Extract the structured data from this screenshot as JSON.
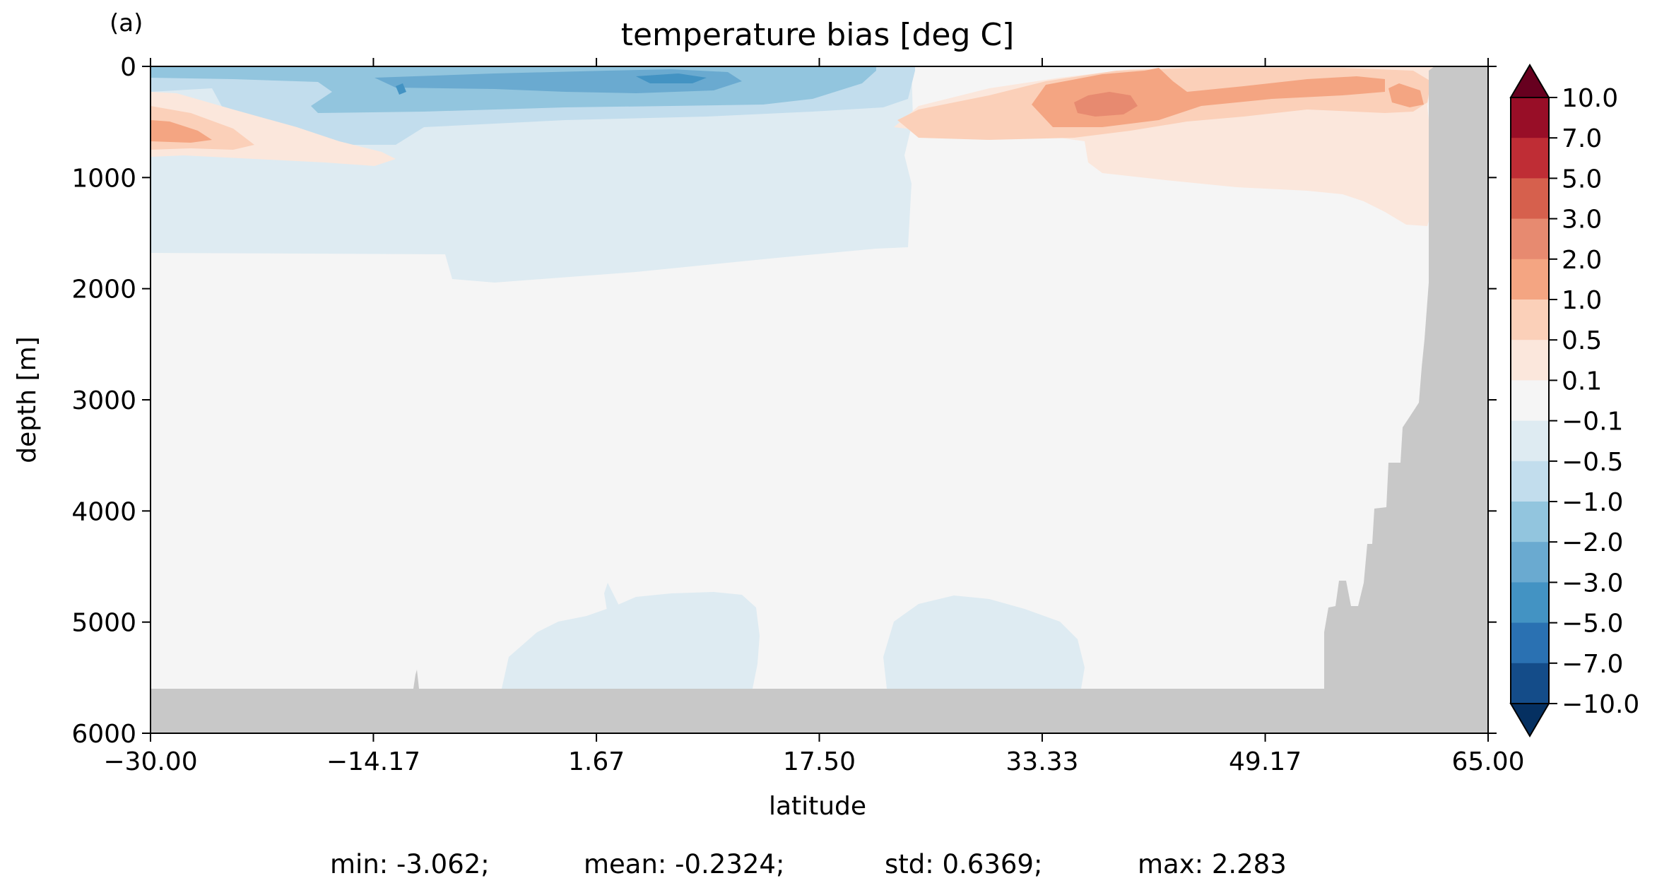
{
  "chart_data": {
    "type": "contourf",
    "panel_label": "(a)",
    "title": "temperature bias [deg C]",
    "xlabel": "latitude",
    "ylabel": "depth [m]",
    "xlim": [
      -30,
      65
    ],
    "ylim": [
      6000,
      0
    ],
    "y_inverted": true,
    "x_ticks": [
      {
        "value": -30.0,
        "label": "−30.00"
      },
      {
        "value": -14.17,
        "label": "−14.17"
      },
      {
        "value": 1.67,
        "label": "1.67"
      },
      {
        "value": 17.5,
        "label": "17.50"
      },
      {
        "value": 33.33,
        "label": "33.33"
      },
      {
        "value": 49.17,
        "label": "49.17"
      },
      {
        "value": 65.0,
        "label": "65.00"
      }
    ],
    "y_ticks": [
      {
        "value": 0,
        "label": "0"
      },
      {
        "value": 1000,
        "label": "1000"
      },
      {
        "value": 2000,
        "label": "2000"
      },
      {
        "value": 3000,
        "label": "3000"
      },
      {
        "value": 4000,
        "label": "4000"
      },
      {
        "value": 5000,
        "label": "5000"
      },
      {
        "value": 6000,
        "label": "6000"
      }
    ],
    "colorbar": {
      "extend": "both",
      "levels": [
        {
          "value": 10.0,
          "label": "10.0"
        },
        {
          "value": 7.0,
          "label": "7.0"
        },
        {
          "value": 5.0,
          "label": "5.0"
        },
        {
          "value": 3.0,
          "label": "3.0"
        },
        {
          "value": 2.0,
          "label": "2.0"
        },
        {
          "value": 1.0,
          "label": "1.0"
        },
        {
          "value": 0.5,
          "label": "0.5"
        },
        {
          "value": 0.1,
          "label": "0.1"
        },
        {
          "value": -0.1,
          "label": "−0.1"
        },
        {
          "value": -0.5,
          "label": "−0.5"
        },
        {
          "value": -1.0,
          "label": "−1.0"
        },
        {
          "value": -2.0,
          "label": "−2.0"
        },
        {
          "value": -3.0,
          "label": "−3.0"
        },
        {
          "value": -5.0,
          "label": "−5.0"
        },
        {
          "value": -7.0,
          "label": "−7.0"
        },
        {
          "value": -10.0,
          "label": "−10.0"
        }
      ],
      "over_color": "#67001f",
      "under_color": "#053061",
      "band_colors_top_to_bottom": [
        "#980e27",
        "#bf2d35",
        "#d6604d",
        "#e78a70",
        "#f4a582",
        "#fbd0b9",
        "#fbe7dc",
        "#f5f5f5",
        "#deebf2",
        "#c2dded",
        "#92c5de",
        "#6aaad0",
        "#4393c3",
        "#2a71b2",
        "#144c89"
      ],
      "land_color": "#c8c8c8"
    },
    "stats": {
      "min": "min: -3.062;",
      "mean": "mean: -0.2324;",
      "std": "std: 0.6369;",
      "max": "max: 2.283"
    }
  }
}
